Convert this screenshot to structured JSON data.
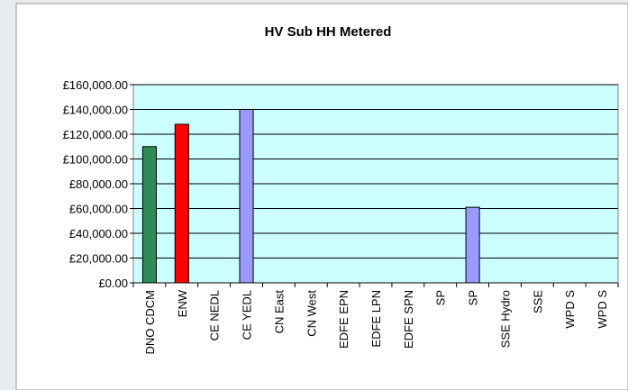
{
  "chart_data": {
    "type": "bar",
    "title": "HV Sub HH Metered",
    "categories": [
      "DNO CDCM",
      "ENW",
      "CE NEDL",
      "CE YEDL",
      "CN East",
      "CN West",
      "EDFE EPN",
      "EDFE LPN",
      "EDFE SPN",
      "SP",
      "SP",
      "SSE Hydro",
      "SSE",
      "WPD S",
      "WPD S"
    ],
    "values": [
      110000,
      128000,
      null,
      140000,
      null,
      null,
      null,
      null,
      null,
      null,
      61000,
      null,
      null,
      null,
      null
    ],
    "colors": [
      "#2e8b57",
      "#ff0000",
      "#9999ff",
      "#9999ff",
      "#9999ff",
      "#9999ff",
      "#9999ff",
      "#9999ff",
      "#9999ff",
      "#9999ff",
      "#9999ff",
      "#9999ff",
      "#9999ff",
      "#9999ff",
      "#9999ff"
    ],
    "ylim": [
      0,
      160000
    ],
    "yticks": [
      {
        "value": 0,
        "label": "£0.00"
      },
      {
        "value": 20000,
        "label": "£20,000.00"
      },
      {
        "value": 40000,
        "label": "£40,000.00"
      },
      {
        "value": 60000,
        "label": "£60,000.00"
      },
      {
        "value": 80000,
        "label": "£80,000.00"
      },
      {
        "value": 100000,
        "label": "£100,000.00"
      },
      {
        "value": 120000,
        "label": "£120,000.00"
      },
      {
        "value": 140000,
        "label": "£140,000.00"
      },
      {
        "value": 160000,
        "label": "£160,000.00"
      }
    ],
    "grid": true
  }
}
